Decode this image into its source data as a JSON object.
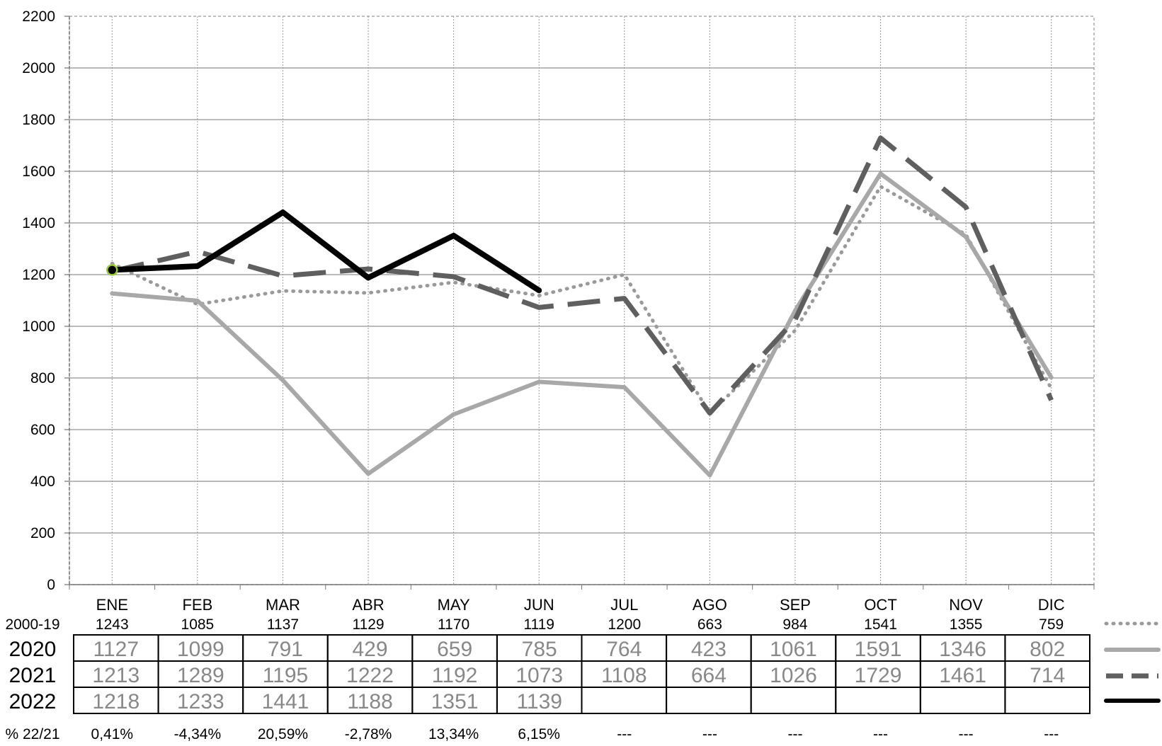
{
  "chart_data": {
    "type": "line",
    "categories": [
      "ENE",
      "FEB",
      "MAR",
      "ABR",
      "MAY",
      "JUN",
      "JUL",
      "AGO",
      "SEP",
      "OCT",
      "NOV",
      "DIC"
    ],
    "ylim": [
      0,
      2200
    ],
    "yticks": [
      0,
      200,
      400,
      600,
      800,
      1000,
      1200,
      1400,
      1600,
      1800,
      2000,
      2200
    ],
    "grid": true,
    "series": [
      {
        "name": "2000-19",
        "style": "dotted",
        "color": "#9a9a9a",
        "values": [
          1243,
          1085,
          1137,
          1129,
          1170,
          1119,
          1200,
          663,
          984,
          1541,
          1355,
          759
        ]
      },
      {
        "name": "2020",
        "style": "solid",
        "color": "#a8a8a8",
        "values": [
          1127,
          1099,
          791,
          429,
          659,
          785,
          764,
          423,
          1061,
          1591,
          1346,
          802
        ]
      },
      {
        "name": "2021",
        "style": "dashed",
        "color": "#5f5f5f",
        "values": [
          1213,
          1289,
          1195,
          1222,
          1192,
          1073,
          1108,
          664,
          1026,
          1729,
          1461,
          714
        ]
      },
      {
        "name": "2022",
        "style": "solid",
        "color": "#000000",
        "values": [
          1218,
          1233,
          1441,
          1188,
          1351,
          1139,
          null,
          null,
          null,
          null,
          null,
          null
        ]
      }
    ],
    "pct_label": "% 22/21",
    "pct_values": [
      "0,41%",
      "-4,34%",
      "20,59%",
      "-2,78%",
      "13,34%",
      "6,15%",
      "---",
      "---",
      "---",
      "---",
      "---",
      "---"
    ],
    "marker_color": "#9acd32"
  }
}
